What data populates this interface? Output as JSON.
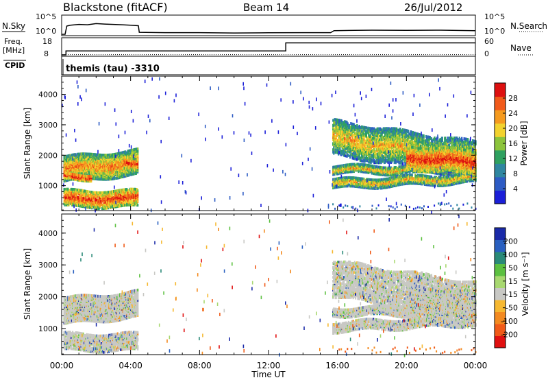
{
  "header": {
    "station": "Blackstone (fitACF)",
    "beam": "Beam 14",
    "date": "26/Jul/2012"
  },
  "side_labels": {
    "nsky": "N.Sky",
    "freq_line1": "Freq.",
    "freq_line2": "[MHz]",
    "cpid": "CPID",
    "nsearch": "N.Search",
    "nave": "Nave"
  },
  "cpid_text": "themis (tau) -3310",
  "colors": {
    "axis": "#000000",
    "ground_scatter": "#c8c8c4",
    "no_data": "#ffffff"
  },
  "chart_data": [
    {
      "type": "line",
      "panel": "noise",
      "left_axis": {
        "label": "N.Sky",
        "ticks": [
          "10^5",
          "10^0"
        ]
      },
      "right_axis": {
        "label": "N.Search",
        "ticks": [
          "10^5",
          "10^0"
        ]
      },
      "x_hours": [
        0.0,
        0.2,
        0.3,
        0.5,
        1.0,
        1.5,
        2.0,
        2.5,
        3.0,
        3.5,
        4.0,
        4.45,
        4.5,
        6,
        8,
        10,
        12,
        14,
        15.6,
        15.8,
        17,
        18,
        20,
        22,
        24
      ],
      "sky_level": [
        0,
        0,
        0.5,
        0.55,
        0.6,
        0.58,
        0.65,
        0.62,
        0.6,
        0.58,
        0.55,
        0.52,
        0.12,
        0.1,
        0.1,
        0.08,
        0.09,
        0.1,
        0.1,
        0.22,
        0.24,
        0.25,
        0.24,
        0.25,
        0.22
      ]
    },
    {
      "type": "line",
      "panel": "frequency",
      "left_axis": {
        "label": "Freq. [MHz]",
        "ticks": [
          "18",
          "8"
        ],
        "range": [
          8,
          18
        ]
      },
      "right_axis": {
        "label": "Nave",
        "ticks": [
          "60",
          "0"
        ],
        "range": [
          0,
          60
        ]
      },
      "frequency": {
        "x_hours": [
          0,
          0.25,
          0.25,
          13.0,
          13.0,
          24
        ],
        "values": [
          8,
          8,
          10.5,
          10.5,
          15.6,
          15.6
        ]
      },
      "nave": {
        "x_hours": [
          0,
          24
        ],
        "values": [
          1,
          1
        ]
      }
    },
    {
      "type": "heatmap",
      "panel": "power",
      "xlabel": "",
      "ylabel": "Slant Range [km]",
      "xlim": [
        0,
        24
      ],
      "ylim": [
        180,
        4600
      ],
      "yticks": [
        1000,
        2000,
        3000,
        4000
      ],
      "colorbar": {
        "label": "Power [dB]",
        "ticks": [
          "4",
          "8",
          "12",
          "16",
          "20",
          "24",
          "28"
        ],
        "range": [
          0,
          32
        ]
      },
      "colors": [
        "#1b1fd8",
        "#2d5bc4",
        "#2f86a0",
        "#2fa160",
        "#8cc43c",
        "#f2d22e",
        "#f59a1e",
        "#f15a1a",
        "#dd1010"
      ],
      "bands": [
        {
          "t0": 0.1,
          "t1": 4.4,
          "r0": 1180,
          "r1": 2000,
          "slope": 220,
          "level": 0.55,
          "density": 0.85
        },
        {
          "t0": 0.1,
          "t1": 4.4,
          "r0": 350,
          "r1": 900,
          "slope": 0,
          "level": 0.75,
          "density": 0.7
        },
        {
          "t0": 0.1,
          "t1": 1.7,
          "r0": 1250,
          "r1": 1450,
          "slope": 0,
          "level": 0.85,
          "density": 0.9
        },
        {
          "t0": 3.6,
          "t1": 4.4,
          "r0": 1600,
          "r1": 2000,
          "slope": 0,
          "level": 0.8,
          "density": 0.7
        },
        {
          "t0": 15.7,
          "t1": 24,
          "r0": 1450,
          "r1": 1700,
          "slope": 0,
          "level": 0.45,
          "density": 0.75
        },
        {
          "t0": 15.7,
          "t1": 24,
          "r0": 950,
          "r1": 1250,
          "slope": 200,
          "level": 0.45,
          "density": 0.7
        },
        {
          "t0": 15.7,
          "t1": 24,
          "r0": 2050,
          "r1": 3200,
          "slope": -700,
          "level": 0.4,
          "density": 0.55
        },
        {
          "t0": 20.0,
          "t1": 24,
          "r0": 1600,
          "r1": 2400,
          "slope": -200,
          "level": 0.78,
          "density": 0.85
        }
      ]
    },
    {
      "type": "heatmap",
      "panel": "velocity",
      "xlabel": "Time UT",
      "ylabel": "Slant Range [km]",
      "xlim": [
        0,
        24
      ],
      "ylim": [
        180,
        4600
      ],
      "yticks": [
        1000,
        2000,
        3000,
        4000
      ],
      "xticks": [
        "00:00",
        "04:00",
        "08:00",
        "12:00",
        "16:00",
        "20:00",
        "00:00"
      ],
      "colorbar": {
        "label": "Velocity [m s⁻¹]",
        "ticks": [
          "200",
          "100",
          "50",
          "15",
          "-15",
          "-50",
          "-100",
          "-200"
        ],
        "range": [
          -250,
          250
        ]
      },
      "colors": [
        "#e01010",
        "#f05a18",
        "#f38a20",
        "#f6b830",
        "#c8c8c4",
        "#a8d870",
        "#5cc040",
        "#2a8a78",
        "#2a60c0",
        "#1a2aa8"
      ],
      "bands": [
        {
          "t0": 0.1,
          "t1": 4.4,
          "r0": 1180,
          "r1": 2000,
          "slope": 220,
          "level": 0.5,
          "density": 0.85
        },
        {
          "t0": 0.1,
          "t1": 4.4,
          "r0": 350,
          "r1": 900,
          "slope": 0,
          "level": 0.5,
          "density": 0.7
        },
        {
          "t0": 15.7,
          "t1": 24,
          "r0": 1450,
          "r1": 1700,
          "slope": 0,
          "level": 0.5,
          "density": 0.75
        },
        {
          "t0": 15.7,
          "t1": 24,
          "r0": 950,
          "r1": 1250,
          "slope": 200,
          "level": 0.5,
          "density": 0.7
        },
        {
          "t0": 15.7,
          "t1": 24,
          "r0": 2050,
          "r1": 3200,
          "slope": -700,
          "level": 0.5,
          "density": 0.55
        },
        {
          "t0": 20.0,
          "t1": 24,
          "r0": 1600,
          "r1": 2400,
          "slope": -200,
          "level": 0.5,
          "density": 0.85
        }
      ]
    }
  ]
}
